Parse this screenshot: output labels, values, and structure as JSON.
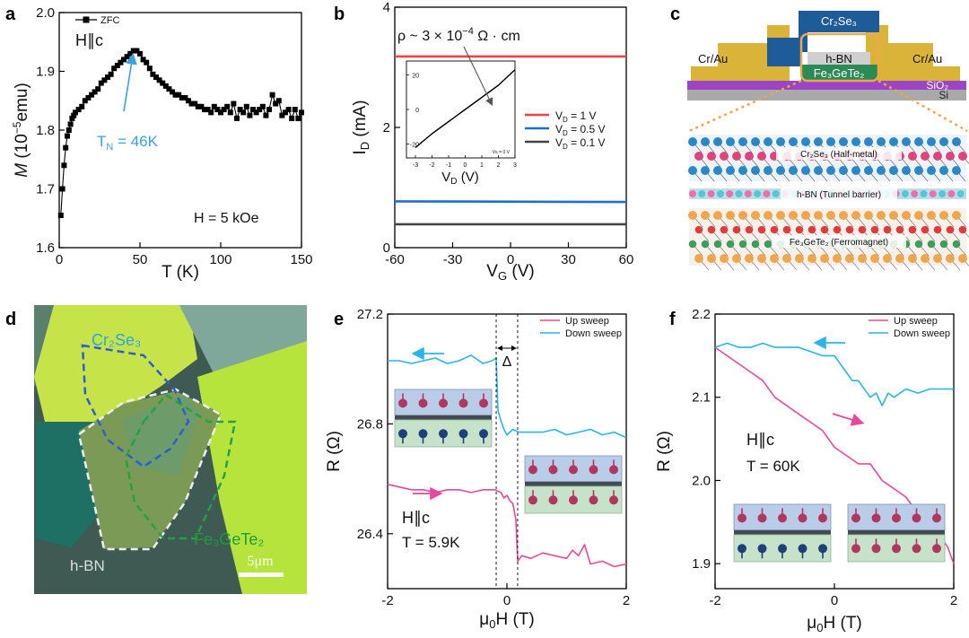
{
  "panels": {
    "a": {
      "letter": "a",
      "legend_label": "ZFC",
      "field_direction": "H∥c",
      "field_note": "H = 5 kOe",
      "tn_label": "T",
      "tn_sub": "N",
      "tn_value": " = 46K",
      "colors": {
        "arrow": "#3aa0e0",
        "data": "#000000"
      }
    },
    "b": {
      "letter": "b",
      "resistivity_label": "ρ ~ 3 × 10",
      "resistivity_exp": "−4",
      "resistivity_unit": " Ω · cm",
      "inset_legend": "Vɢ = 0 V",
      "colors": {
        "1V": "#e84545",
        "0.5V": "#1f6fd1",
        "0.1V": "#444444"
      }
    },
    "c": {
      "letter": "c",
      "device_labels": {
        "top": "Cr₂Se₃",
        "hbn": "h-BN",
        "fgt": "Fe₃GeTe₂",
        "left_contact": "Cr/Au",
        "right_contact": "Cr/Au",
        "sio2": "SiO₂",
        "si": "Si"
      },
      "layer_labels": {
        "top": "Cr₂Se₃ (Half-metal)",
        "mid": "h-BN (Tunnel barrier)",
        "bottom": "Fe₃GeTe₂ (Ferromagnet)"
      },
      "colors": {
        "gold": "#d9b438",
        "blue": "#1d5c99",
        "green": "#2c8a57",
        "purple": "#9b45c4",
        "pink": "#e0457a",
        "orange": "#f0a64a",
        "cyan": "#53c7d9"
      }
    },
    "d": {
      "letter": "d",
      "labels": {
        "cr2se3": "Cr₂Se₃",
        "fgt": "Fe₃GeTe₂",
        "hbn": "h-BN",
        "scale": "5μm"
      },
      "colors": {
        "cr2se3_label": "#2aa6e0",
        "fgt_label": "#1a9e3c",
        "hbn_label": "#dddddd"
      }
    },
    "e": {
      "letter": "e",
      "delta_label": "Δ",
      "field_direction": "H∥c",
      "temperature": "T = 5.9K",
      "legend_up": "Up sweep",
      "legend_down": "Down sweep",
      "colors": {
        "up": "#e8489c",
        "down": "#2ab4ea"
      }
    },
    "f": {
      "letter": "f",
      "field_direction": "H∥c",
      "temperature": "T = 60K",
      "legend_up": "Up sweep",
      "legend_down": "Down sweep",
      "colors": {
        "up": "#e8489c",
        "down": "#2ab4ea"
      }
    }
  },
  "chart_data": [
    {
      "id": "a",
      "type": "scatter",
      "xlabel": "T (K)",
      "ylabel_main": "M",
      "ylabel_unit": " (10",
      "ylabel_exp": "−5",
      "ylabel_tail": "emu)",
      "xlim": [
        0,
        150
      ],
      "ylim": [
        1.6,
        2.0
      ],
      "xticks": [
        0,
        50,
        100,
        150
      ],
      "yticks": [
        1.6,
        1.7,
        1.8,
        1.9,
        2.0
      ],
      "xtick_labels": [
        "0",
        "50",
        "100",
        "150"
      ],
      "ytick_labels": [
        "1.6",
        "1.7",
        "1.8",
        "1.9",
        "2.0"
      ],
      "series": [
        {
          "name": "ZFC",
          "x": [
            1,
            2,
            3,
            4,
            5,
            6,
            7,
            8,
            9,
            10,
            12,
            14,
            16,
            18,
            20,
            22,
            24,
            26,
            28,
            30,
            32,
            34,
            36,
            38,
            40,
            42,
            44,
            46,
            48,
            50,
            52,
            54,
            56,
            58,
            60,
            62,
            64,
            66,
            68,
            70,
            72,
            74,
            76,
            78,
            80,
            82,
            84,
            86,
            88,
            90,
            92,
            94,
            96,
            98,
            100,
            102,
            104,
            106,
            108,
            110,
            112,
            114,
            116,
            118,
            120,
            122,
            124,
            126,
            128,
            130,
            132,
            134,
            136,
            138,
            140,
            142,
            144,
            146,
            148,
            150
          ],
          "y": [
            1.655,
            1.7,
            1.74,
            1.77,
            1.79,
            1.8,
            1.81,
            1.82,
            1.825,
            1.83,
            1.835,
            1.84,
            1.85,
            1.855,
            1.86,
            1.865,
            1.87,
            1.88,
            1.885,
            1.89,
            1.895,
            1.905,
            1.91,
            1.915,
            1.92,
            1.925,
            1.93,
            1.935,
            1.935,
            1.93,
            1.92,
            1.915,
            1.905,
            1.895,
            1.89,
            1.885,
            1.88,
            1.875,
            1.87,
            1.865,
            1.86,
            1.86,
            1.855,
            1.855,
            1.85,
            1.845,
            1.845,
            1.84,
            1.84,
            1.835,
            1.835,
            1.83,
            1.84,
            1.835,
            1.83,
            1.835,
            1.84,
            1.83,
            1.845,
            1.82,
            1.835,
            1.83,
            1.84,
            1.825,
            1.835,
            1.83,
            1.835,
            1.84,
            1.825,
            1.835,
            1.86,
            1.845,
            1.85,
            1.825,
            1.83,
            1.835,
            1.82,
            1.835,
            1.82,
            1.83
          ]
        }
      ],
      "annotation_T": 46
    },
    {
      "id": "b",
      "type": "line",
      "xlabel_main": "V",
      "xlabel_sub": "G",
      "xlabel_tail": " (V)",
      "ylabel_main": "I",
      "ylabel_sub": "D",
      "ylabel_tail": " (mA)",
      "xlim": [
        -60,
        60
      ],
      "ylim": [
        0,
        4
      ],
      "xticks": [
        -60,
        -30,
        0,
        30,
        60
      ],
      "yticks": [
        0,
        2,
        4
      ],
      "xtick_labels": [
        "-60",
        "-30",
        "0",
        "30",
        "60"
      ],
      "ytick_labels": [
        "0",
        "2",
        "4"
      ],
      "series": [
        {
          "name": "V_D = 1 V",
          "label_main": "V",
          "label_sub": "D",
          "label_tail": " = 1 V",
          "color": "#e84545",
          "x": [
            -60,
            60
          ],
          "y": [
            3.18,
            3.18
          ]
        },
        {
          "name": "V_D = 0.5 V",
          "label_main": "V",
          "label_sub": "D",
          "label_tail": " = 0.5 V",
          "color": "#1f6fd1",
          "x": [
            -60,
            60
          ],
          "y": [
            0.77,
            0.76
          ]
        },
        {
          "name": "V_D = 0.1 V",
          "label_main": "V",
          "label_sub": "D",
          "label_tail": " = 0.1 V",
          "color": "#444444",
          "x": [
            -60,
            60
          ],
          "y": [
            0.39,
            0.39
          ]
        }
      ],
      "inset": {
        "xlabel_main": "V",
        "xlabel_sub": "D",
        "xlabel_tail": " (V)",
        "xlim": [
          -3,
          3
        ],
        "ylim": [
          -28,
          28
        ],
        "xticks": [
          -3,
          -2,
          -1,
          0,
          1,
          2,
          3
        ],
        "yticks": [
          -20,
          0,
          20
        ],
        "xtick_labels": [
          "-3",
          "-2",
          "-1",
          "0",
          "1",
          "2",
          "3"
        ],
        "ytick_labels": [
          "-20",
          "0",
          "20"
        ],
        "x": [
          -3,
          -2,
          -1,
          0,
          1,
          2,
          3
        ],
        "y": [
          -22,
          -14,
          -7,
          0,
          7,
          14,
          23
        ]
      }
    },
    {
      "id": "e",
      "type": "line",
      "xlabel_pre": "μ",
      "xlabel_sub": "0",
      "xlabel_tail": "H (T)",
      "ylabel": "R (Ω)",
      "xlim": [
        -2,
        2
      ],
      "ylim": [
        26.2,
        27.2
      ],
      "xticks": [
        -2,
        0,
        2
      ],
      "yticks": [
        26.4,
        26.8,
        27.2
      ],
      "xtick_labels": [
        "-2",
        "0",
        "2"
      ],
      "ytick_labels": [
        "26.4",
        "26.8",
        "27.2"
      ],
      "switch_fields": [
        -0.18,
        0.18
      ],
      "series": [
        {
          "name": "Up sweep",
          "color": "#e8489c",
          "x": [
            -2,
            -1.8,
            -1.6,
            -1.4,
            -1.2,
            -1,
            -0.8,
            -0.6,
            -0.4,
            -0.2,
            -0.1,
            -0.05,
            0,
            0.05,
            0.1,
            0.15,
            0.18,
            0.25,
            0.4,
            0.6,
            0.8,
            1.0,
            1.1,
            1.2,
            1.3,
            1.4,
            1.6,
            1.8,
            2
          ],
          "y": [
            26.58,
            26.57,
            26.56,
            26.56,
            26.55,
            26.56,
            26.56,
            26.55,
            26.56,
            26.56,
            26.55,
            26.53,
            26.54,
            26.52,
            26.51,
            26.45,
            26.3,
            26.32,
            26.31,
            26.33,
            26.32,
            26.31,
            26.34,
            26.32,
            26.36,
            26.29,
            26.3,
            26.28,
            26.29
          ]
        },
        {
          "name": "Down sweep",
          "color": "#2ab4ea",
          "x": [
            2,
            1.8,
            1.6,
            1.4,
            1.2,
            1.0,
            0.8,
            0.6,
            0.4,
            0.2,
            0.1,
            0,
            -0.05,
            -0.1,
            -0.15,
            -0.18,
            -0.25,
            -0.4,
            -0.6,
            -0.8,
            -1.0,
            -1.2,
            -1.4,
            -1.6,
            -1.8,
            -2
          ],
          "y": [
            26.75,
            26.77,
            26.76,
            26.78,
            26.77,
            26.76,
            26.78,
            26.77,
            26.77,
            26.77,
            26.78,
            26.76,
            26.78,
            26.81,
            26.85,
            27.04,
            27.03,
            27.02,
            27.05,
            27.03,
            27.02,
            27.04,
            27.03,
            27.02,
            27.03,
            27.03
          ]
        }
      ]
    },
    {
      "id": "f",
      "type": "line",
      "xlabel_pre": "μ",
      "xlabel_sub": "0",
      "xlabel_tail": "H (T)",
      "ylabel": "R (Ω)",
      "xlim": [
        -2,
        2
      ],
      "ylim": [
        1.87,
        2.2
      ],
      "xticks": [
        -2,
        0,
        2
      ],
      "yticks": [
        1.9,
        2.0,
        2.1,
        2.2
      ],
      "xtick_labels": [
        "-2",
        "0",
        "2"
      ],
      "ytick_labels": [
        "1.9",
        "2.0",
        "2.1",
        "2.2"
      ],
      "series": [
        {
          "name": "Up sweep",
          "color": "#e8489c",
          "x": [
            -2,
            -1.8,
            -1.6,
            -1.4,
            -1.2,
            -1.0,
            -0.8,
            -0.6,
            -0.4,
            -0.2,
            0,
            0.2,
            0.4,
            0.6,
            0.8,
            1.0,
            1.2,
            1.4,
            1.6,
            1.7,
            1.8,
            1.9,
            2.0
          ],
          "y": [
            2.16,
            2.15,
            2.14,
            2.13,
            2.12,
            2.1,
            2.09,
            2.08,
            2.07,
            2.06,
            2.04,
            2.03,
            2.02,
            2.02,
            2.0,
            1.99,
            1.98,
            1.96,
            1.95,
            1.94,
            1.93,
            1.92,
            1.9
          ]
        },
        {
          "name": "Down sweep",
          "color": "#2ab4ea",
          "x": [
            2.0,
            1.8,
            1.6,
            1.4,
            1.2,
            1.0,
            0.9,
            0.8,
            0.7,
            0.6,
            0.4,
            0.3,
            0.2,
            0.0,
            -0.2,
            -0.4,
            -0.6,
            -0.8,
            -1.0,
            -1.2,
            -1.4,
            -1.6,
            -1.8,
            -2.0
          ],
          "y": [
            2.11,
            2.11,
            2.11,
            2.105,
            2.11,
            2.1,
            2.105,
            2.09,
            2.105,
            2.1,
            2.12,
            2.12,
            2.13,
            2.15,
            2.15,
            2.155,
            2.16,
            2.16,
            2.16,
            2.165,
            2.16,
            2.16,
            2.165,
            2.16
          ]
        }
      ]
    }
  ]
}
